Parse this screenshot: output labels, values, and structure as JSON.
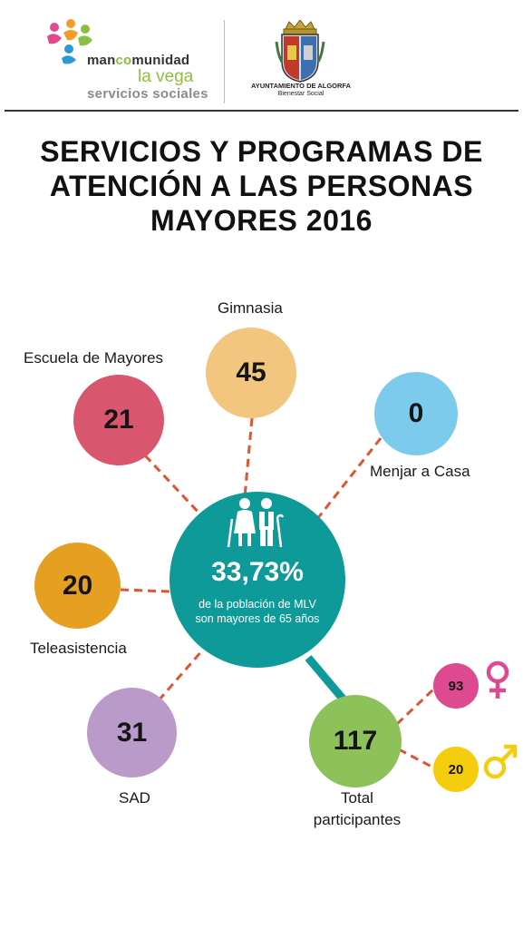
{
  "header": {
    "logo_left": {
      "line1_prefix": "man",
      "line1_highlight": "co",
      "line1_suffix": "munidad",
      "line2": "la vega",
      "line3": "servicios sociales"
    },
    "logo_right": {
      "name": "AYUNTAMIENTO DE ALGORFA",
      "subtitle": "Bienestar Social"
    }
  },
  "title": "SERVICIOS Y PROGRAMAS DE ATENCIÓN A LAS PERSONAS MAYORES 2016",
  "center": {
    "percentage": "33,73%",
    "description": "de la población de MLV son mayores de 65 años",
    "icon": "elderly-couple-icon"
  },
  "services": {
    "gimnasia": {
      "label": "Gimnasia",
      "value": "45"
    },
    "escuela": {
      "label": "Escuela de Mayores",
      "value": "21"
    },
    "menjar": {
      "label": "Menjar a Casa",
      "value": "0"
    },
    "teleasistencia": {
      "label": "Teleasistencia",
      "value": "20"
    },
    "sad": {
      "label": "SAD",
      "value": "31"
    },
    "total": {
      "label": "Total participantes",
      "value": "117"
    }
  },
  "gender": {
    "women": {
      "value": "93",
      "icon": "female-symbol-icon"
    },
    "men": {
      "value": "20",
      "icon": "male-symbol-icon"
    }
  },
  "colors": {
    "center": "#0e9a98",
    "gimnasia": "#f2c67e",
    "escuela": "#d8566e",
    "menjar": "#7ccbed",
    "teleasistencia": "#e6a021",
    "sad": "#b99ac9",
    "total": "#8dc15a",
    "women": "#de4a8f",
    "men": "#f6cd0e",
    "connector": "#e0552f"
  }
}
